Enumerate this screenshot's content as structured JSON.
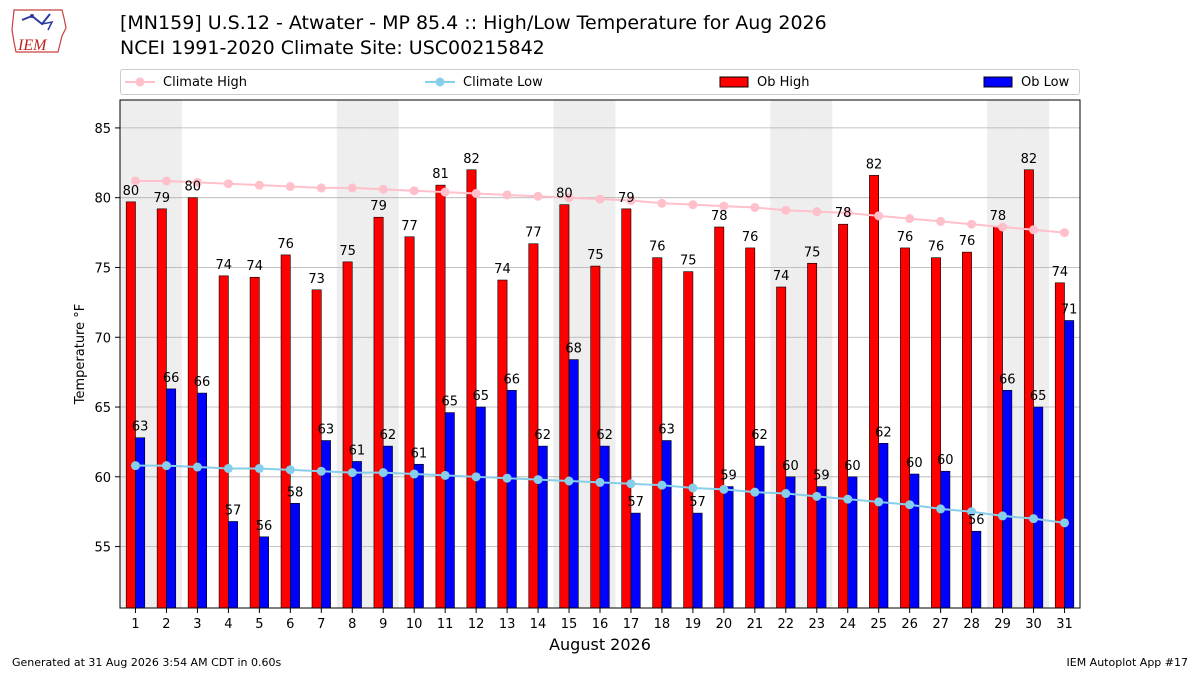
{
  "header": {
    "logo_text": "IEM",
    "title_line1": "[MN159] U.S.12 - Atwater - MP 85.4  :: High/Low Temperature for Aug 2026",
    "title_line2": "NCEI 1991-2020 Climate Site: USC00215842"
  },
  "legend": {
    "climate_high": "Climate High",
    "climate_low": "Climate Low",
    "ob_high": "Ob High",
    "ob_low": "Ob Low"
  },
  "colors": {
    "ob_high": "#ff0000",
    "ob_low": "#0000ff",
    "climate_high": "#ffc0cb",
    "climate_low": "#87ceeb",
    "weekend_band": "#eeeeee",
    "grid": "#b0b0b0"
  },
  "chart_data": {
    "type": "bar",
    "xlabel": "August 2026",
    "ylabel": "Temperature °F",
    "ylim": [
      50.6,
      87.0
    ],
    "yticks": [
      55,
      60,
      65,
      70,
      75,
      80,
      85
    ],
    "grid": "horizontal",
    "legend_position": "top",
    "categories": [
      "1",
      "2",
      "3",
      "4",
      "5",
      "6",
      "7",
      "8",
      "9",
      "10",
      "11",
      "12",
      "13",
      "14",
      "15",
      "16",
      "17",
      "18",
      "19",
      "20",
      "21",
      "22",
      "23",
      "24",
      "25",
      "26",
      "27",
      "28",
      "29",
      "30",
      "31"
    ],
    "shaded_days": [
      "1",
      "2",
      "8",
      "9",
      "15",
      "16",
      "22",
      "23",
      "29",
      "30"
    ],
    "series": [
      {
        "name": "Ob High",
        "kind": "bar",
        "values": [
          79.7,
          79.2,
          80.0,
          74.4,
          74.3,
          75.9,
          73.4,
          75.4,
          78.6,
          77.2,
          80.9,
          82.0,
          74.1,
          76.7,
          79.5,
          75.1,
          79.2,
          75.7,
          74.7,
          77.9,
          76.4,
          73.6,
          75.3,
          78.1,
          81.6,
          76.4,
          75.7,
          76.1,
          77.9,
          82.0,
          73.9
        ],
        "labels": [
          "80",
          "79",
          "80",
          "74",
          "74",
          "76",
          "73",
          "75",
          "79",
          "77",
          "81",
          "82",
          "74",
          "77",
          "80",
          "75",
          "79",
          "76",
          "75",
          "78",
          "76",
          "74",
          "75",
          "78",
          "82",
          "76",
          "76",
          "76",
          "78",
          "82",
          "74"
        ]
      },
      {
        "name": "Ob Low",
        "kind": "bar",
        "values": [
          62.8,
          66.3,
          66.0,
          56.8,
          55.7,
          58.1,
          62.6,
          61.1,
          62.2,
          60.9,
          64.6,
          65.0,
          66.2,
          62.2,
          68.4,
          62.2,
          57.4,
          62.6,
          57.4,
          59.3,
          62.2,
          60.0,
          59.3,
          60.0,
          62.4,
          60.2,
          60.4,
          56.1,
          66.2,
          65.0,
          71.2
        ],
        "labels": [
          "63",
          "66",
          "66",
          "57",
          "56",
          "58",
          "63",
          "61",
          "62",
          "61",
          "65",
          "65",
          "66",
          "62",
          "68",
          "62",
          "57",
          "63",
          "57",
          "59",
          "62",
          "60",
          "59",
          "60",
          "62",
          "60",
          "60",
          "56",
          "66",
          "65",
          "71"
        ]
      },
      {
        "name": "Climate High",
        "kind": "line",
        "values": [
          81.2,
          81.2,
          81.1,
          81.0,
          80.9,
          80.8,
          80.7,
          80.7,
          80.6,
          80.5,
          80.4,
          80.3,
          80.2,
          80.1,
          80.0,
          79.9,
          79.8,
          79.6,
          79.5,
          79.4,
          79.3,
          79.1,
          79.0,
          78.9,
          78.7,
          78.5,
          78.3,
          78.1,
          77.9,
          77.7,
          77.5
        ]
      },
      {
        "name": "Climate Low",
        "kind": "line",
        "values": [
          60.8,
          60.8,
          60.7,
          60.6,
          60.6,
          60.5,
          60.4,
          60.3,
          60.3,
          60.2,
          60.1,
          60.0,
          59.9,
          59.8,
          59.7,
          59.6,
          59.5,
          59.4,
          59.2,
          59.1,
          58.9,
          58.8,
          58.6,
          58.4,
          58.2,
          58.0,
          57.7,
          57.5,
          57.2,
          57.0,
          56.7
        ]
      }
    ]
  },
  "footer": {
    "generated": "Generated at 31 Aug 2026 3:54 AM CDT in 0.60s",
    "app": "IEM Autoplot App #17"
  }
}
